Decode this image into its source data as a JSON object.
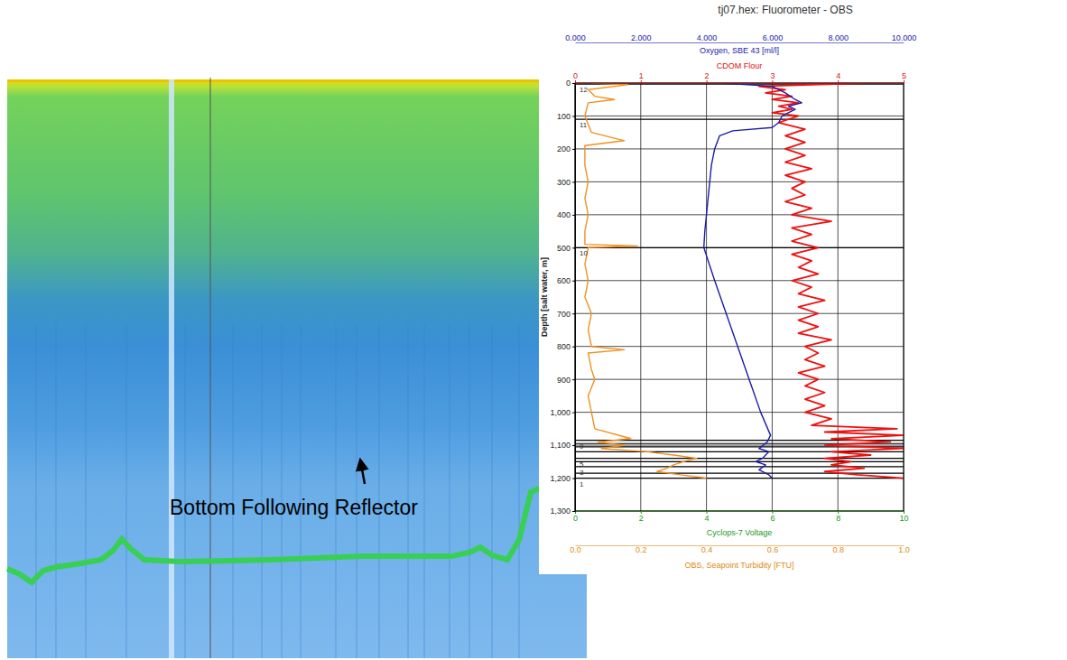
{
  "chart_data": {
    "type": "line",
    "title": "tj07.hex: Fluorometer - OBS",
    "ylabel": "Depth [salt water, m]",
    "ylim": [
      0,
      1300
    ],
    "yticks": [
      0,
      100,
      200,
      300,
      400,
      500,
      600,
      700,
      800,
      900,
      {
        "value": 1000,
        "label": "1,000"
      },
      {
        "value": 1100,
        "label": "1,100"
      },
      {
        "value": 1200,
        "label": "1,200"
      },
      {
        "value": 1300,
        "label": "1,300"
      }
    ],
    "grid": true,
    "axes": [
      {
        "label": "Oxygen, SBE 43 [ml/l]",
        "color": "#1c1ca8",
        "xlim": [
          0,
          10
        ],
        "xticks": [
          {
            "value": 0,
            "label": "0.000"
          },
          {
            "value": 2,
            "label": "2.000"
          },
          {
            "value": 4,
            "label": "4.000"
          },
          {
            "value": 6,
            "label": "6.000"
          },
          {
            "value": 8,
            "label": "8.000"
          },
          {
            "value": 10,
            "label": "10.000"
          }
        ],
        "series": {
          "color": "#1c1ca8",
          "depth": [
            0,
            10,
            30,
            50,
            60,
            70,
            80,
            100,
            120,
            135,
            145,
            160,
            200,
            250,
            300,
            350,
            400,
            450,
            500,
            600,
            700,
            800,
            900,
            1000,
            1070,
            1090,
            1110,
            1120,
            1140,
            1150,
            1160,
            1175,
            1190,
            1200
          ],
          "values": [
            4.5,
            6.0,
            6.4,
            6.7,
            6.9,
            6.5,
            6.7,
            6.3,
            6.2,
            6.0,
            4.8,
            4.4,
            4.25,
            4.15,
            4.1,
            4.05,
            4.0,
            3.95,
            3.92,
            4.25,
            4.6,
            4.95,
            5.3,
            5.65,
            5.95,
            5.85,
            5.6,
            5.9,
            5.7,
            5.5,
            5.8,
            5.6,
            5.9,
            6.0
          ]
        }
      },
      {
        "label": "CDOM Flour",
        "color": "#e01010",
        "xlim": [
          0,
          5
        ],
        "xticks": [
          0,
          1,
          2,
          3,
          4,
          5
        ],
        "series": {
          "color": "#ee1111",
          "depth": [
            0,
            10,
            20,
            30,
            40,
            50,
            60,
            70,
            80,
            90,
            100,
            120,
            140,
            160,
            180,
            200,
            220,
            240,
            260,
            280,
            300,
            320,
            340,
            360,
            380,
            400,
            420,
            440,
            460,
            480,
            500,
            520,
            540,
            560,
            580,
            600,
            620,
            640,
            660,
            680,
            700,
            720,
            740,
            760,
            780,
            800,
            820,
            840,
            860,
            880,
            900,
            920,
            940,
            960,
            980,
            1000,
            1020,
            1040,
            1050,
            1060,
            1070,
            1080,
            1090,
            1100,
            1110,
            1120,
            1130,
            1140,
            1150,
            1160,
            1170,
            1180,
            1190,
            1200
          ],
          "values": [
            4.4,
            2.8,
            3.2,
            2.9,
            3.3,
            3.0,
            3.4,
            3.1,
            3.3,
            3.0,
            3.4,
            3.1,
            3.5,
            3.2,
            3.5,
            3.2,
            3.5,
            3.2,
            3.6,
            3.2,
            3.5,
            3.3,
            3.5,
            3.2,
            3.6,
            3.3,
            3.9,
            3.3,
            3.6,
            3.3,
            3.7,
            3.3,
            3.6,
            3.4,
            3.7,
            3.3,
            3.6,
            3.4,
            3.8,
            3.4,
            3.7,
            3.4,
            3.7,
            3.4,
            3.9,
            3.5,
            3.7,
            3.5,
            3.8,
            3.4,
            3.7,
            3.5,
            3.8,
            3.5,
            3.8,
            3.5,
            3.9,
            3.6,
            4.9,
            3.8,
            5.0,
            3.9,
            4.8,
            3.8,
            5.0,
            3.9,
            4.5,
            3.8,
            4.2,
            3.9,
            4.4,
            3.8,
            4.3,
            5.0
          ]
        }
      },
      {
        "label": "Cyclops-7 Voltage",
        "color": "#1a9a1a",
        "xlim": [
          0,
          10
        ],
        "xticks": [
          0,
          2,
          4,
          6,
          8,
          10
        ]
      },
      {
        "label": "OBS, Seapoint Turbidity [FTU]",
        "color": "#e08a10",
        "xlim": [
          0,
          1
        ],
        "xticks": [
          {
            "value": 0,
            "label": "0.0"
          },
          {
            "value": 0.2,
            "label": "0.2"
          },
          {
            "value": 0.4,
            "label": "0.4"
          },
          {
            "value": 0.6,
            "label": "0.6"
          },
          {
            "value": 0.8,
            "label": "0.8"
          },
          {
            "value": 1,
            "label": "1.0"
          }
        ],
        "series": {
          "color": "#f09020",
          "depth": [
            0,
            5,
            20,
            40,
            50,
            60,
            100,
            150,
            175,
            190,
            250,
            300,
            350,
            400,
            450,
            490,
            495,
            500,
            550,
            600,
            650,
            700,
            750,
            800,
            810,
            820,
            870,
            900,
            950,
            1000,
            1050,
            1080,
            1090,
            1100,
            1110,
            1120,
            1130,
            1140,
            1150,
            1160,
            1170,
            1180,
            1190,
            1200
          ],
          "values": [
            0.05,
            0.16,
            0.04,
            0.06,
            0.12,
            0.04,
            0.03,
            0.05,
            0.15,
            0.03,
            0.03,
            0.04,
            0.03,
            0.04,
            0.03,
            0.03,
            0.19,
            0.04,
            0.03,
            0.04,
            0.03,
            0.05,
            0.04,
            0.05,
            0.15,
            0.04,
            0.05,
            0.06,
            0.04,
            0.05,
            0.06,
            0.17,
            0.07,
            0.15,
            0.08,
            0.22,
            0.3,
            0.37,
            0.33,
            0.3,
            0.28,
            0.25,
            0.32,
            0.4
          ]
        }
      }
    ],
    "bottles": [
      {
        "depth": 3,
        "label": "12"
      },
      {
        "depth": 110,
        "label": "11"
      },
      {
        "depth": 500,
        "label": "10"
      },
      {
        "depth": 1085,
        "label": "9"
      },
      {
        "depth": 1095,
        "label": null
      },
      {
        "depth": 1105,
        "label": null
      },
      {
        "depth": 1120,
        "label": null
      },
      {
        "depth": 1140,
        "label": "5"
      },
      {
        "depth": 1150,
        "label": null
      },
      {
        "depth": 1165,
        "label": "3"
      },
      {
        "depth": 1185,
        "label": null
      },
      {
        "depth": 1200,
        "label": "1"
      }
    ]
  },
  "echogram": {
    "annotation": "Bottom Following Reflector"
  }
}
